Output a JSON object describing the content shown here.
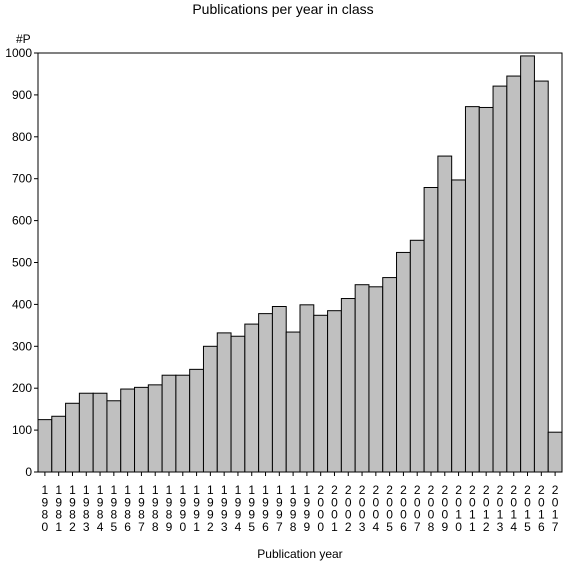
{
  "chart_data": {
    "type": "bar",
    "title": "Publications per year in class",
    "ylabel": "#P",
    "xlabel": "Publication year",
    "ylim": [
      0,
      1000
    ],
    "yticks": [
      0,
      100,
      200,
      300,
      400,
      500,
      600,
      700,
      800,
      900,
      1000
    ],
    "grid": false,
    "bar_color": "#c0c0c0",
    "categories": [
      "1980",
      "1981",
      "1982",
      "1983",
      "1984",
      "1985",
      "1986",
      "1987",
      "1988",
      "1989",
      "1990",
      "1991",
      "1992",
      "1993",
      "1994",
      "1995",
      "1996",
      "1997",
      "1998",
      "1999",
      "2000",
      "2001",
      "2002",
      "2003",
      "2004",
      "2005",
      "2006",
      "2007",
      "2008",
      "2009",
      "2010",
      "2011",
      "2012",
      "2013",
      "2014",
      "2015",
      "2016",
      "2017"
    ],
    "values": [
      125,
      133,
      164,
      188,
      188,
      170,
      198,
      202,
      208,
      231,
      231,
      245,
      300,
      332,
      324,
      353,
      378,
      395,
      334,
      399,
      374,
      385,
      414,
      447,
      442,
      464,
      524,
      553,
      679,
      754,
      697,
      872,
      870,
      921,
      945,
      993,
      933,
      95
    ]
  }
}
